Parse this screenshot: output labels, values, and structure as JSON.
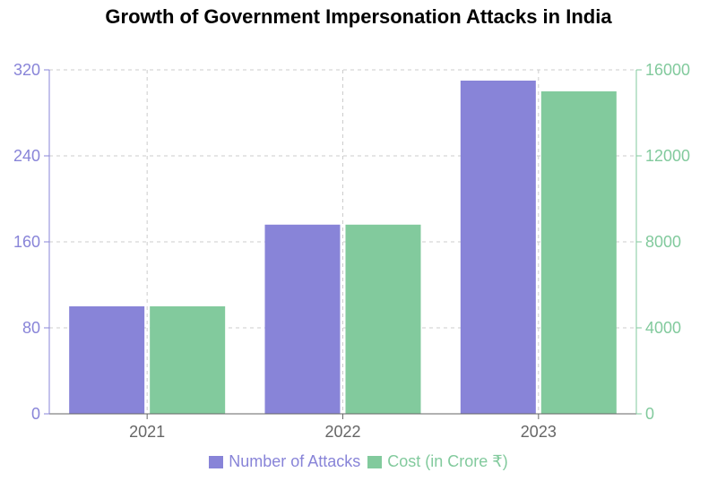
{
  "chart_data": {
    "type": "bar",
    "title": "Growth of Government Impersonation Attacks in India",
    "categories": [
      "2021",
      "2022",
      "2023"
    ],
    "series": [
      {
        "name": "Number of Attacks",
        "axis": "left",
        "color": "#8884d8",
        "values": [
          100,
          176,
          310
        ]
      },
      {
        "name": "Cost (in Crore ₹)",
        "axis": "right",
        "color": "#82ca9d",
        "values": [
          5000,
          8800,
          15000
        ]
      }
    ],
    "y_left": {
      "ylim": [
        0,
        320
      ],
      "ticks": [
        0,
        80,
        160,
        240,
        320
      ],
      "color": "#8884d8"
    },
    "y_right": {
      "ylim": [
        0,
        16000
      ],
      "ticks": [
        0,
        4000,
        8000,
        12000,
        16000
      ],
      "color": "#82ca9d"
    },
    "grid": true,
    "legend_position": "bottom"
  }
}
